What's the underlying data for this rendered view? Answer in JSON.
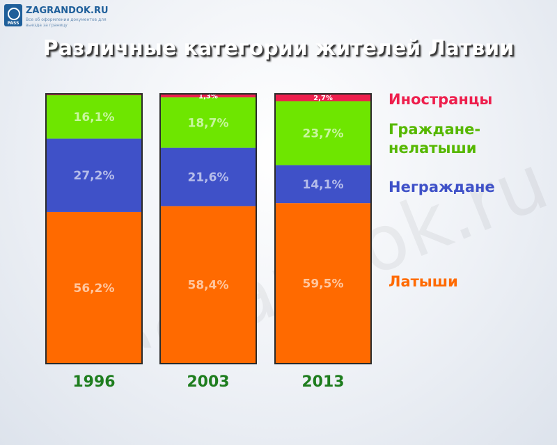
{
  "logo": {
    "name": "ZAGRANDOK.RU",
    "tagline": "Все об оформлении документов для выезда за границу",
    "badge_text": "PASS"
  },
  "title": "Различные категории жителей Латвии",
  "watermark": "zagrandok.ru",
  "colors": {
    "foreigners": "#ee1f4d",
    "noncitizens_label": "#3f51c8",
    "background_text": "#1e7d1e"
  },
  "chart_data": {
    "type": "bar",
    "stacked": true,
    "normalized_percent": true,
    "categories": [
      "1996",
      "2003",
      "2013"
    ],
    "series": [
      {
        "name": "Латыши",
        "color": "#ff6a00",
        "values": [
          56.2,
          58.4,
          59.5
        ],
        "labels": [
          "56,2%",
          "58,4%",
          "59,5%"
        ]
      },
      {
        "name": "Неграждане",
        "color": "#3f51c8",
        "values": [
          27.2,
          21.6,
          14.1
        ],
        "labels": [
          "27,2%",
          "21,6%",
          "14,1%"
        ]
      },
      {
        "name": "Граждане-нелатыши",
        "color": "#6ee600",
        "values": [
          16.1,
          18.7,
          23.7
        ],
        "labels": [
          "16,1%",
          "18,7%",
          "23,7%"
        ]
      },
      {
        "name": "Иностранцы",
        "color": "#ee1f4d",
        "values": [
          0.5,
          1.3,
          2.7
        ],
        "labels": [
          "",
          "1,3%",
          "2,7%"
        ]
      }
    ],
    "legend": [
      {
        "lines": [
          "Иностранцы"
        ],
        "color": "#ee1f4d"
      },
      {
        "lines": [
          "Граждане-",
          "нелатыши"
        ],
        "color": "#56b800"
      },
      {
        "lines": [
          "Неграждане"
        ],
        "color": "#3f51c8"
      },
      {
        "lines": [
          "Латыши"
        ],
        "color": "#ff6a00"
      }
    ],
    "category_label_color": "#1e7d1e",
    "legend_placement": "right",
    "grid": false
  }
}
